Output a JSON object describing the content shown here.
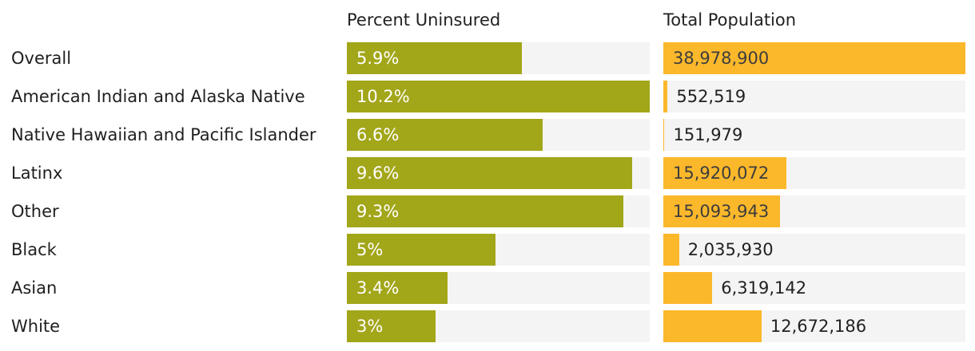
{
  "chart_data": {
    "type": "bar",
    "orientation": "horizontal",
    "title": "",
    "grid": false,
    "legend_position": "none",
    "track_color": "#f4f4f4",
    "categories": [
      "Overall",
      "American Indian and Alaska Native",
      "Native Hawaiian and Pacific Islander",
      "Latinx",
      "Other",
      "Black",
      "Asian",
      "White"
    ],
    "series": [
      {
        "name": "Percent Uninsured",
        "values": [
          5.9,
          10.2,
          6.6,
          9.6,
          9.3,
          5,
          3.4,
          3
        ],
        "labels": [
          "5.9%",
          "10.2%",
          "6.6%",
          "9.6%",
          "9.3%",
          "5%",
          "3.4%",
          "3%"
        ],
        "axis_max": 10.2,
        "bar_color": "#a2a619",
        "inside_label_color": "#ffffff",
        "outside_label_color": "#212121",
        "label_inside": [
          true,
          true,
          true,
          true,
          true,
          true,
          true,
          true
        ]
      },
      {
        "name": "Total Population",
        "values": [
          38978900,
          552519,
          151979,
          15920072,
          15093943,
          2035930,
          6319142,
          12672186
        ],
        "labels": [
          "38,978,900",
          "552,519",
          "151,979",
          "15,920,072",
          "15,093,943",
          "2,035,930",
          "6,319,142",
          "12,672,186"
        ],
        "axis_max": 38978900,
        "bar_color": "#fbb82b",
        "inside_label_color": "#3d3d3d",
        "outside_label_color": "#212121",
        "label_inside": [
          true,
          false,
          false,
          true,
          true,
          false,
          false,
          false
        ]
      }
    ]
  }
}
